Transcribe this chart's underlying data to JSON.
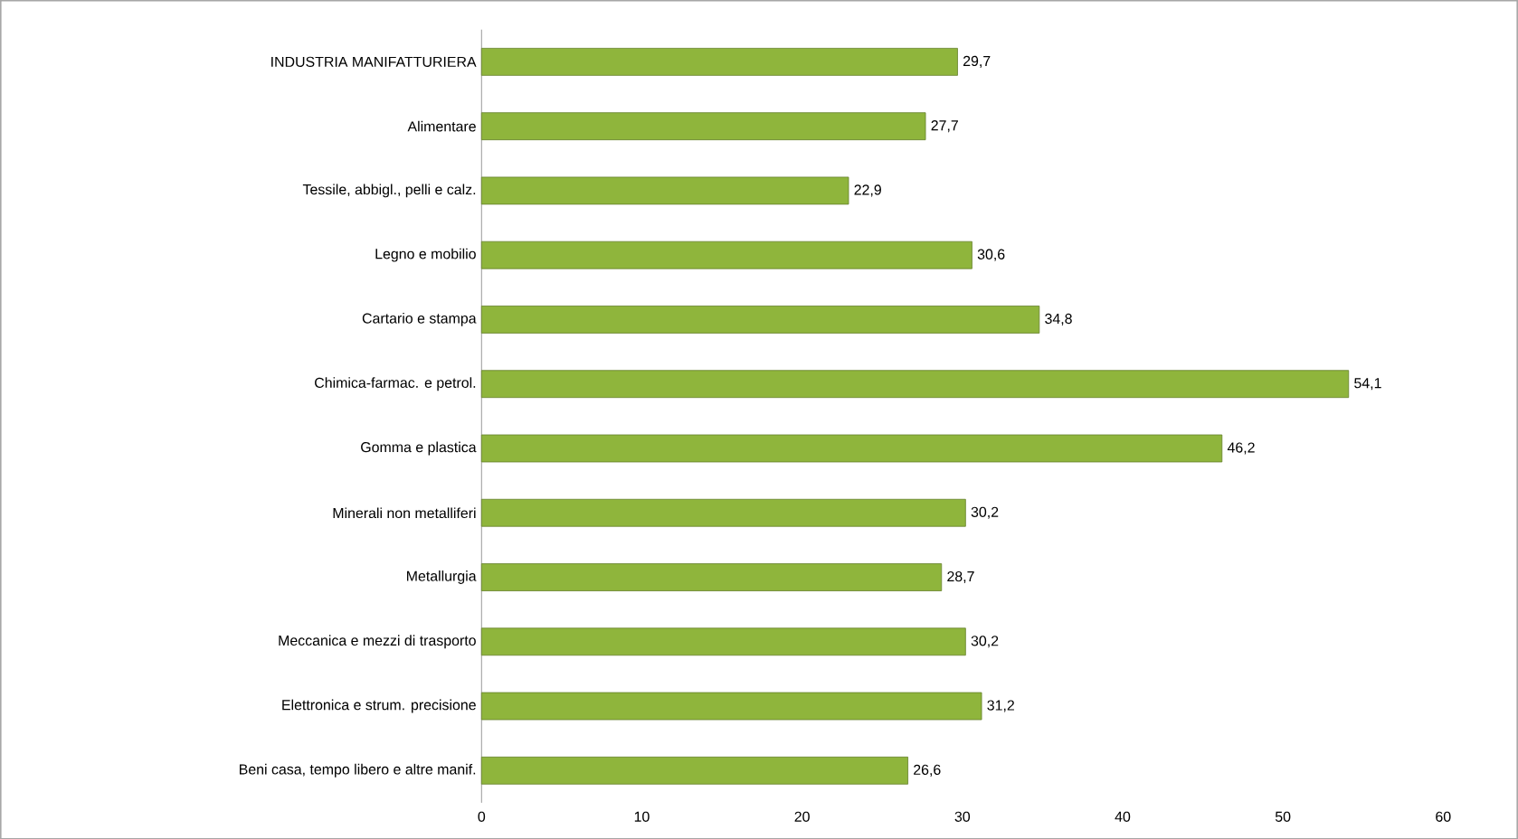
{
  "chart_data": {
    "type": "bar",
    "orientation": "horizontal",
    "categories": [
      "INDUSTRIA MANIFATTURIERA",
      "Alimentare",
      "Tessile, abbigl., pelli e calz.",
      "Legno e mobilio",
      "Cartario e stampa",
      "Chimica-farmac. e petrol.",
      "Gomma e plastica",
      "Minerali non metalliferi",
      "Metallurgia",
      "Meccanica e mezzi di trasporto",
      "Elettronica e strum. precisione",
      "Beni casa, tempo libero e altre manif."
    ],
    "values": [
      29.7,
      27.7,
      22.9,
      30.6,
      34.8,
      54.1,
      46.2,
      30.2,
      28.7,
      30.2,
      31.2,
      26.6
    ],
    "value_labels": [
      "29,7",
      "27,7",
      "22,9",
      "30,6",
      "34,8",
      "54,1",
      "46,2",
      "30,2",
      "28,7",
      "30,2",
      "31,2",
      "26,6"
    ],
    "color": "#8fb53c",
    "xlim": [
      0,
      60
    ],
    "xticks": [
      0,
      10,
      20,
      30,
      40,
      50,
      60
    ]
  }
}
